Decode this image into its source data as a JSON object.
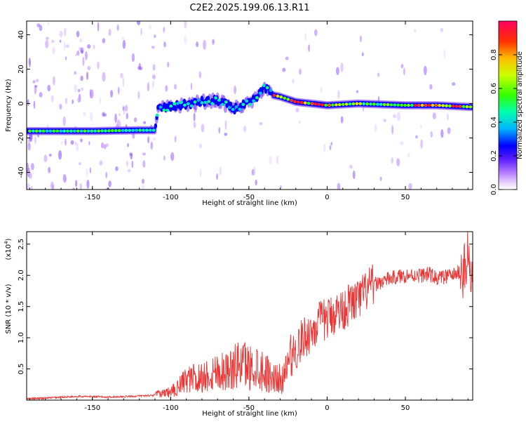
{
  "title": "C2E2.2025.199.06.13.R11",
  "chart_data": [
    {
      "type": "heatmap",
      "title": "C2E2.2025.199.06.13.R11",
      "xlabel": "Height of straight line (km)",
      "ylabel": "Frequency (Hz)",
      "xlim": [
        -192,
        93
      ],
      "ylim": [
        -50,
        48
      ],
      "x_ticks": [
        -150,
        -100,
        -50,
        0,
        50
      ],
      "x_tick_labels": [
        "-150",
        "-100",
        "-50",
        "0",
        "50"
      ],
      "y_ticks": [
        -40,
        -20,
        0,
        20,
        40
      ],
      "y_tick_labels": [
        "-40",
        "-20",
        "0",
        "20",
        "40"
      ],
      "colorbar": {
        "label": "Normalized spectral amplitude",
        "range": [
          0,
          1
        ],
        "ticks": [
          0.0,
          0.2,
          0.4,
          0.6,
          0.8
        ],
        "tick_labels": [
          "0.0",
          "0.2",
          "0.4",
          "0.6",
          "0.8"
        ]
      },
      "ridge": {
        "x": [
          -192,
          -150,
          -120,
          -110,
          -108,
          -100,
          -80,
          -70,
          -60,
          -50,
          -45,
          -40,
          -35,
          -30,
          -20,
          -10,
          0,
          20,
          50,
          70,
          93
        ],
        "frequency": [
          -16,
          -16,
          -15.5,
          -15.5,
          -3,
          -2,
          1,
          2,
          -3,
          0,
          3,
          10,
          5,
          4,
          1,
          0,
          -1,
          0,
          -1,
          -1,
          -2
        ]
      }
    },
    {
      "type": "line",
      "xlabel": "Height of straight line (km)",
      "ylabel": "SNR (10 * v/v)",
      "y_multiplier_label": "(x10",
      "y_multiplier_exp": "4",
      "xlim": [
        -192,
        93
      ],
      "ylim": [
        0,
        2.7
      ],
      "x_ticks": [
        -150,
        -100,
        -50,
        0,
        50
      ],
      "x_tick_labels": [
        "-150",
        "-100",
        "-50",
        "0",
        "50"
      ],
      "y_ticks": [
        0.5,
        1.0,
        1.5,
        2.0,
        2.5
      ],
      "y_tick_labels": [
        "0.5",
        "1.0",
        "1.5",
        "2.0",
        "2.5"
      ],
      "series": [
        {
          "color": "#ee3333",
          "x": [
            -192,
            -175,
            -160,
            -140,
            -125,
            -110,
            -100,
            -95,
            -90,
            -85,
            -80,
            -75,
            -70,
            -65,
            -60,
            -55,
            -50,
            -45,
            -40,
            -35,
            -30,
            -27,
            -25,
            -22,
            -20,
            -15,
            -10,
            -5,
            0,
            5,
            10,
            15,
            20,
            25,
            30,
            40,
            50,
            60,
            65,
            70,
            80,
            88,
            90,
            92,
            93
          ],
          "y": [
            0.02,
            0.04,
            0.06,
            0.05,
            0.06,
            0.08,
            0.12,
            0.2,
            0.3,
            0.33,
            0.35,
            0.4,
            0.45,
            0.45,
            0.47,
            0.6,
            0.5,
            0.52,
            0.45,
            0.35,
            0.32,
            0.3,
            0.65,
            0.75,
            0.8,
            1.0,
            1.1,
            1.25,
            1.3,
            1.4,
            1.45,
            1.55,
            1.6,
            1.75,
            1.85,
            1.95,
            2.0,
            2.0,
            2.02,
            1.95,
            2.0,
            2.1,
            2.3,
            1.9,
            1.95
          ]
        }
      ]
    }
  ]
}
